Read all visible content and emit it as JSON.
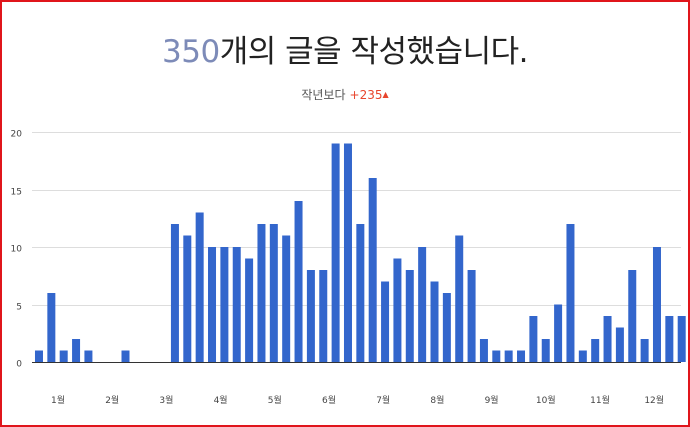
{
  "header": {
    "count": "350",
    "headline_rest": "개의 글을 작성했습니다.",
    "compare_label": "작년보다",
    "compare_value": "+235",
    "compare_arrow": "▲"
  },
  "colors": {
    "bar": "#3366cc",
    "count": "#7d8bb8",
    "delta": "#e8452c",
    "frame": "#e0151b",
    "grid": "#dddddd"
  },
  "chart_data": {
    "type": "bar",
    "title": "",
    "xlabel": "",
    "ylabel": "",
    "ylim": [
      0,
      20
    ],
    "yticks": [
      0,
      5,
      10,
      15,
      20
    ],
    "grid": true,
    "months": [
      "1월",
      "2월",
      "3월",
      "4월",
      "5월",
      "6월",
      "7월",
      "8월",
      "9월",
      "10월",
      "11월",
      "12월"
    ],
    "weeks_per_month": 4.4,
    "values": [
      1,
      6,
      1,
      2,
      1,
      0,
      0,
      1,
      0,
      0,
      0,
      12,
      11,
      13,
      10,
      10,
      10,
      9,
      12,
      12,
      11,
      14,
      8,
      8,
      19,
      19,
      12,
      16,
      7,
      9,
      8,
      10,
      7,
      6,
      11,
      8,
      2,
      1,
      1,
      1,
      4,
      2,
      5,
      12,
      1,
      2,
      4,
      3,
      8,
      2,
      10,
      4,
      4
    ]
  }
}
